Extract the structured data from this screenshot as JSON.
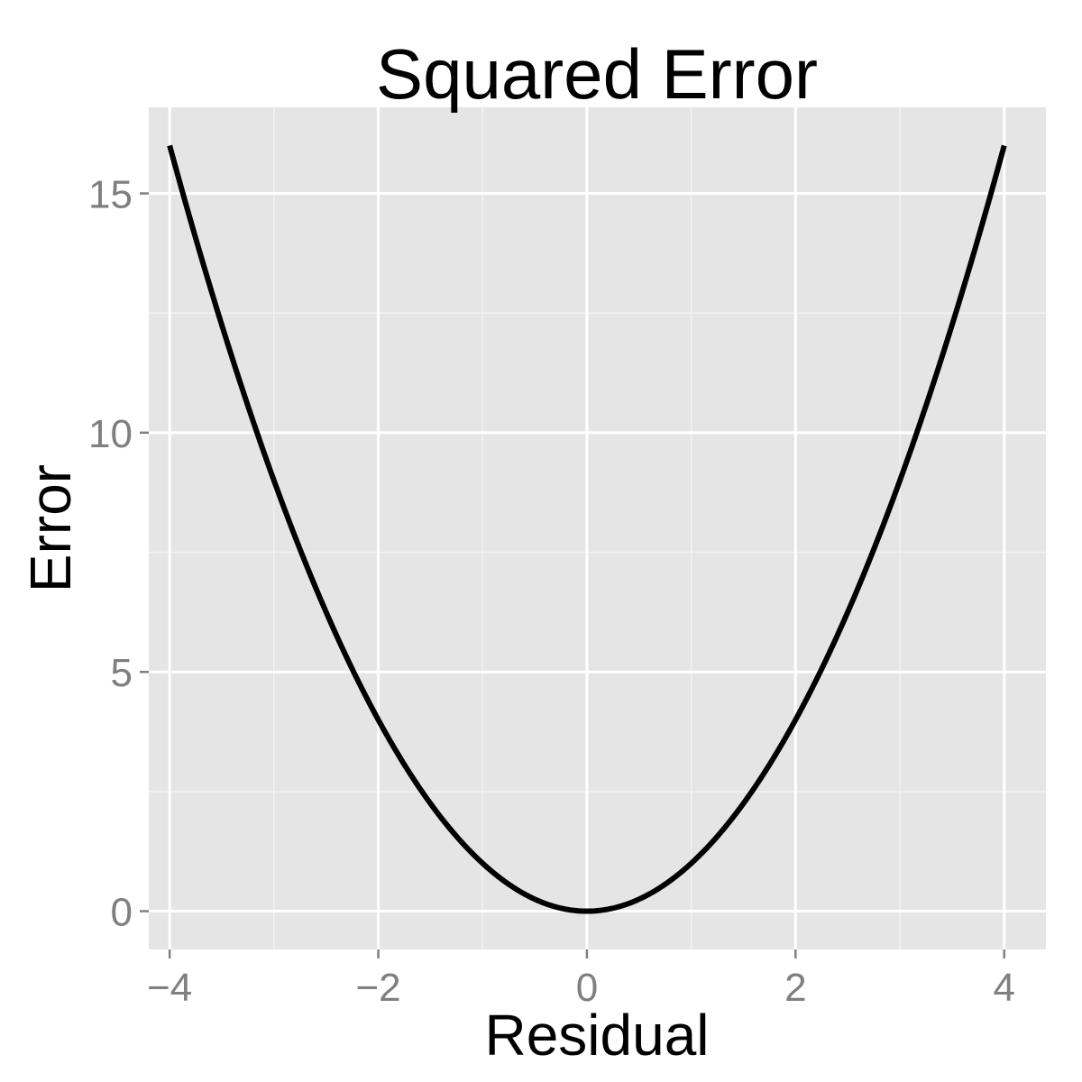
{
  "chart_data": {
    "type": "line",
    "title": "Squared Error",
    "xlabel": "Residual",
    "ylabel": "Error",
    "xlim": [
      -4.2,
      4.4
    ],
    "ylim": [
      -0.8,
      16.8
    ],
    "x_ticks": [
      -4,
      -2,
      0,
      2,
      4
    ],
    "x_tick_labels": [
      "−4",
      "−2",
      "0",
      "2",
      "4"
    ],
    "y_ticks": [
      0,
      5,
      10,
      15
    ],
    "y_tick_labels": [
      "0",
      "5",
      "10",
      "15"
    ],
    "x_minor_ticks": [
      -3,
      -1,
      1,
      3
    ],
    "y_minor_ticks": [
      2.5,
      7.5,
      12.5
    ],
    "grid": true,
    "legend": "none",
    "series": [
      {
        "x": [
          -4,
          -3.5,
          -3,
          -2.5,
          -2,
          -1.5,
          -1,
          -0.5,
          0,
          0.5,
          1,
          1.5,
          2,
          2.5,
          3,
          3.5,
          4
        ],
        "y": [
          16,
          12.25,
          9,
          6.25,
          4,
          2.25,
          1,
          0.25,
          0,
          0.25,
          1,
          2.25,
          4,
          6.25,
          9,
          12.25,
          16
        ]
      }
    ],
    "colors": {
      "panel": "#e5e5e5",
      "grid_major": "#ffffff",
      "grid_minor": "#f2f2f2",
      "line": "#000000",
      "tick_label": "#7f7f7f",
      "tick_mark": "#7f7f7f"
    }
  }
}
